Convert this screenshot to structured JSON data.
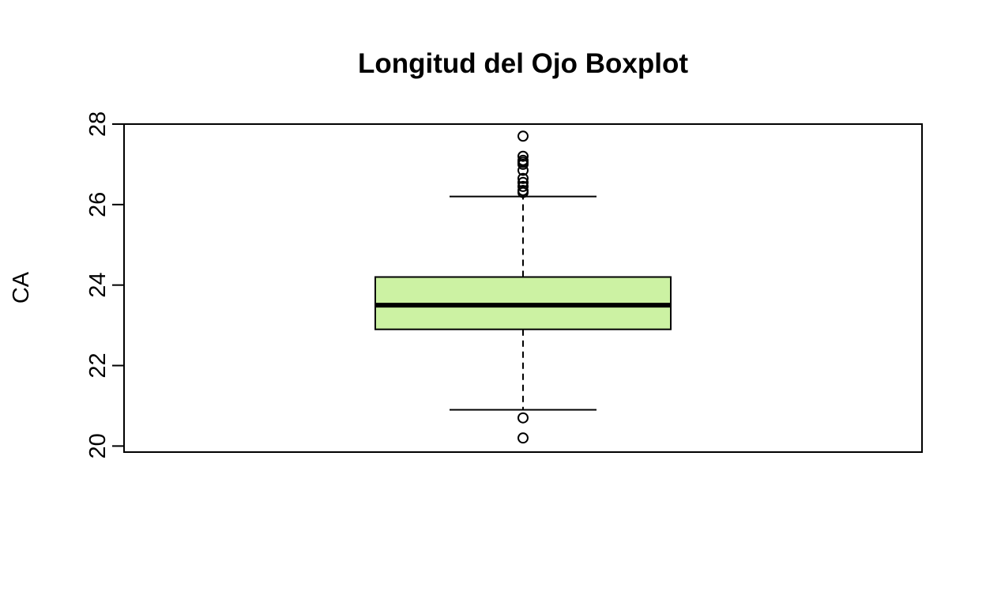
{
  "chart_data": {
    "type": "boxplot",
    "title": "Longitud del Ojo Boxplot",
    "xlabel": "",
    "ylabel": "CA",
    "ylim": [
      19.85,
      28.0
    ],
    "yticks": [
      "20",
      "22",
      "24",
      "26",
      "28"
    ],
    "grid": false,
    "box_fill_color": "#ccf2a3",
    "stats": {
      "whisker_low": 20.9,
      "q1": 22.9,
      "median": 23.5,
      "q3": 24.2,
      "whisker_high": 26.2
    },
    "outliers": [
      20.7,
      20.2,
      26.3,
      26.35,
      26.45,
      26.55,
      26.65,
      26.85,
      27.0,
      27.05,
      27.1,
      27.2,
      27.7
    ]
  }
}
